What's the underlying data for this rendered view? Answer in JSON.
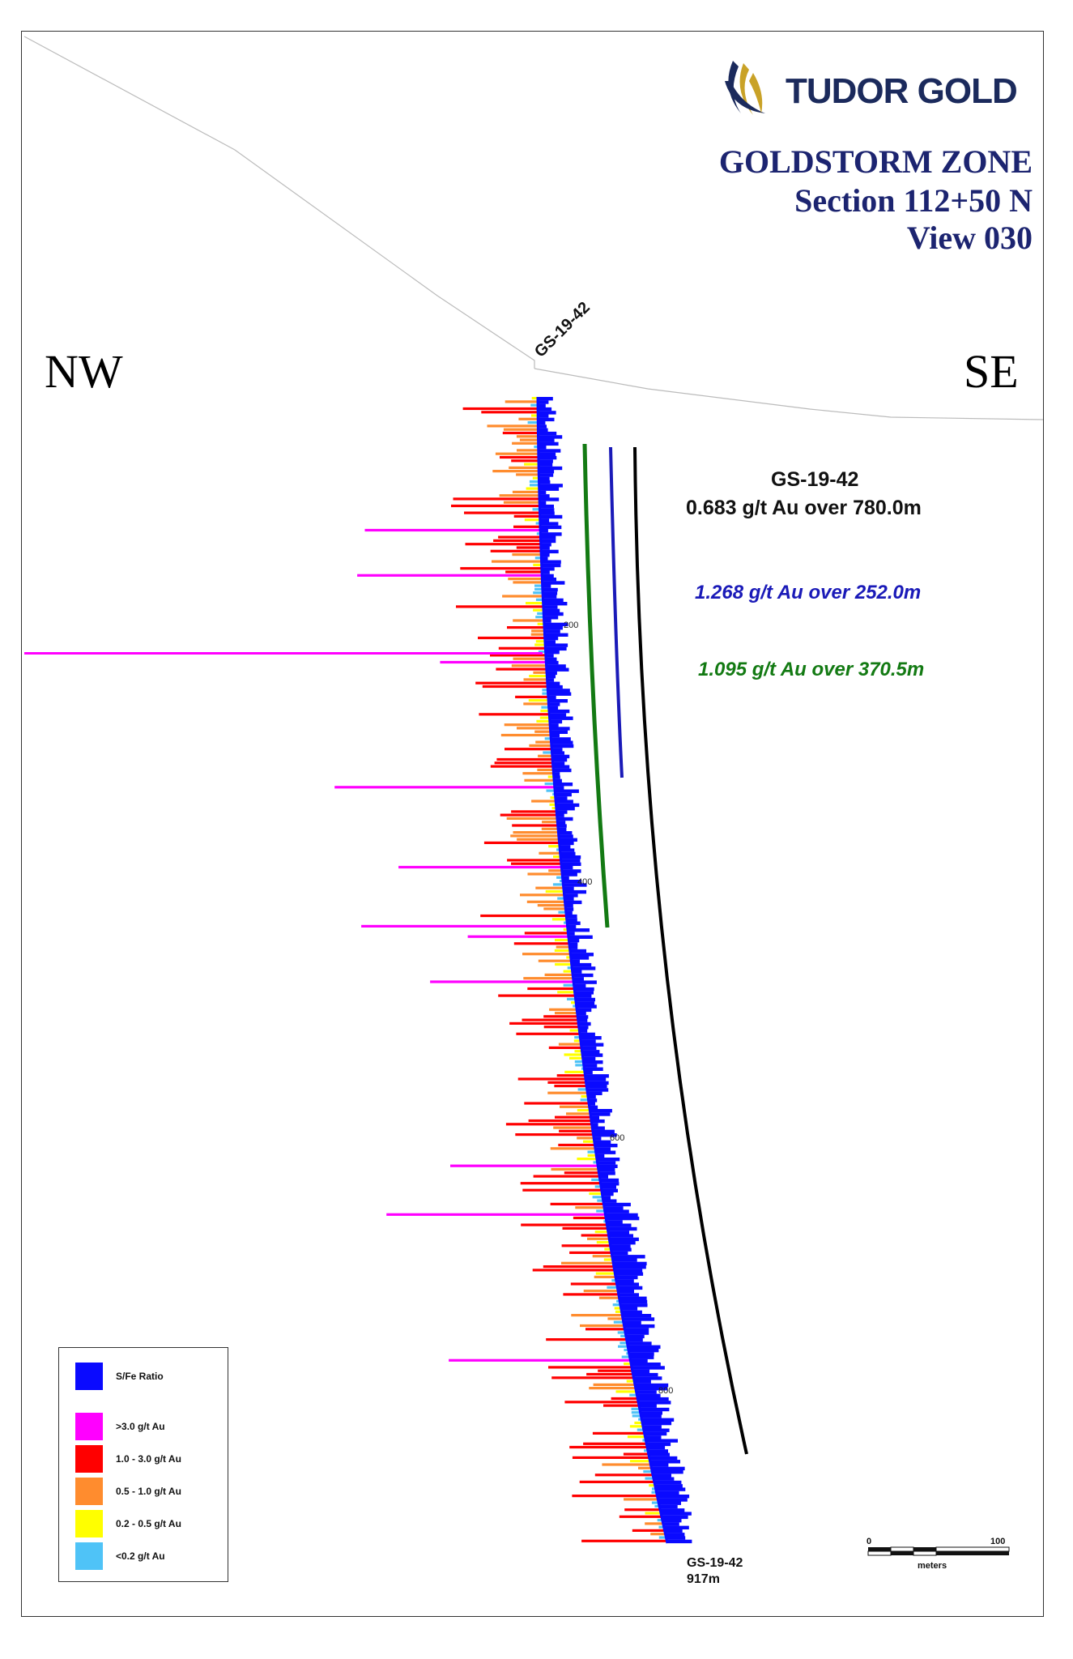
{
  "brand": {
    "name": "TUDOR GOLD",
    "color": "#1b2a5c",
    "accent": "#c9a227"
  },
  "title": {
    "line1": "GOLDSTORM ZONE",
    "line2": "Section 112+50 N",
    "line3": "View 030"
  },
  "directions": {
    "left": "NW",
    "right": "SE"
  },
  "hole": {
    "collar_label": "GS-19-42",
    "end_label": "GS-19-42",
    "end_depth": "917m"
  },
  "intercepts": {
    "main_hole": "GS-19-42",
    "main": "0.683 g/t Au over 780.0m",
    "blue": "1.268 g/t Au over 252.0m",
    "green": "1.095 g/t Au over 370.5m",
    "colors": {
      "main": "#000000",
      "blue": "#1a1ab8",
      "green": "#137a13"
    }
  },
  "depth_ticks": [
    "200",
    "400",
    "600",
    "800"
  ],
  "legend": [
    {
      "label": "S/Fe Ratio",
      "color": "#0a0aff"
    },
    {
      "label": ">3.0 g/t Au",
      "color": "#ff00ff"
    },
    {
      "label": "1.0 - 3.0 g/t Au",
      "color": "#ff0000"
    },
    {
      "label": "0.5 - 1.0 g/t Au",
      "color": "#ff8c2e"
    },
    {
      "label": "0.2 - 0.5 g/t Au",
      "color": "#ffff00"
    },
    {
      "label": "<0.2 g/t Au",
      "color": "#4fc3f7"
    }
  ],
  "scale": {
    "min": "0",
    "max": "100",
    "unit": "meters"
  }
}
